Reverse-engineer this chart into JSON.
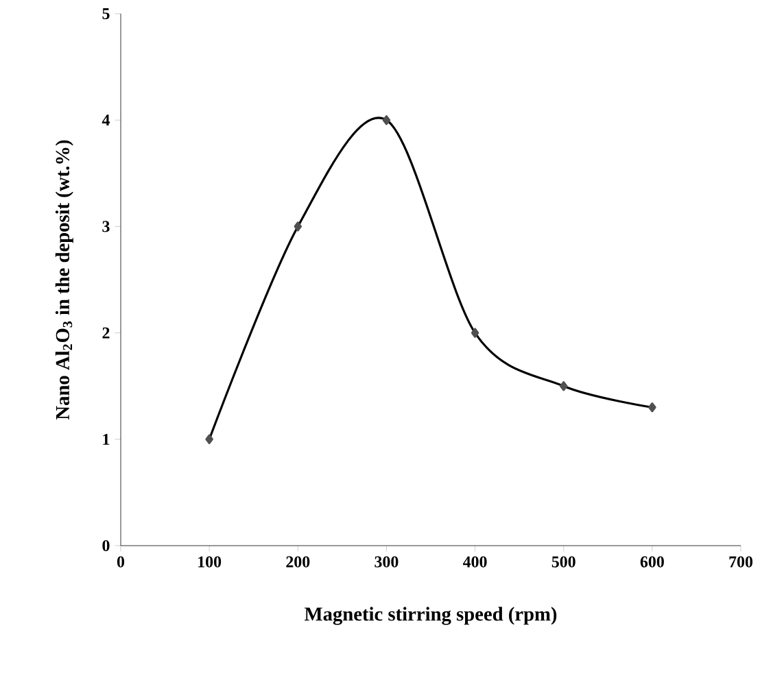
{
  "chart_data": {
    "type": "line",
    "xlabel": "Magnetic stirring speed (rpm)",
    "ylabel": "Nano Al$_{2}$O$_{3}$ in the deposit (wt.%)",
    "x": [
      100,
      200,
      300,
      400,
      500,
      600
    ],
    "series": [
      {
        "color": "#505050",
        "values": [
          1,
          3,
          4,
          2,
          1.5,
          1.3
        ]
      }
    ],
    "xlim": [
      0,
      700
    ],
    "xticks": [
      0,
      100,
      200,
      300,
      400,
      500,
      600,
      700
    ],
    "ylim": [
      0,
      5
    ],
    "yticks": [
      0,
      1,
      2,
      3,
      4,
      5
    ],
    "marker": "diamond",
    "line_style": "solid",
    "grid": false
  }
}
